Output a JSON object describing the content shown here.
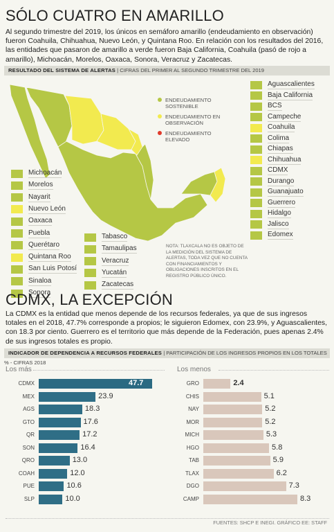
{
  "title": "SÓLO CUATRO EN AMARILLO",
  "intro": "Al segundo trimestre del 2019, los únicos en semáforo amarillo (endeudamiento en observación) fueron Coahuila, Chihuahua, Nuevo León, y Quintana Roo. En relación con los resultados del 2016, las entidades que pasaron de amarillo a verde fueron Baja California, Coahuila (pasó de rojo a amarillo), Michoacán, Morelos, Oaxaca, Sonora, Veracruz y Zacatecas.",
  "map_section": {
    "header_bold": "RESULTADO DEL SISTEMA DE ALERTAS",
    "header_rest": "| CIFRAS DEL PRIMER AL SEGUNDO TRIMESTRE DEL 2019",
    "legend": [
      {
        "label": "ENDEUDAMIENTO SOSTENIBLE",
        "color": "#b5c745"
      },
      {
        "label": "ENDEUDAMIENTO EN OBSERVACIÓN",
        "color": "#f2ea4f"
      },
      {
        "label": "ENDEUDAMIENTO ELEVADO",
        "color": "#e03a2b"
      }
    ],
    "note": "NOTA: TLAXCALA NO ES OBJETO DE LA MEDICIÓN DEL SISTEMA DE ALERTAS, TODA VEZ QUE NO CUENTA CON FINANCIAMIENTOS Y OBLIGACIONES INSCRITOS EN EL REGISTRO PÚBLICO ÚNICO.",
    "colors": {
      "green": "#b5c745",
      "yellow": "#f2ea4f",
      "red": "#e03a2b"
    },
    "left_states": [
      {
        "name": "Michoacán",
        "status": "green"
      },
      {
        "name": "Morelos",
        "status": "green"
      },
      {
        "name": "Nayarit",
        "status": "green"
      },
      {
        "name": "Nuevo León",
        "status": "yellow"
      },
      {
        "name": "Oaxaca",
        "status": "green"
      },
      {
        "name": "Puebla",
        "status": "green"
      },
      {
        "name": "Querétaro",
        "status": "green"
      },
      {
        "name": "Quintana Roo",
        "status": "yellow"
      },
      {
        "name": "San Luis Potosí",
        "status": "green"
      },
      {
        "name": "Sinaloa",
        "status": "green"
      },
      {
        "name": "Sonora",
        "status": "green"
      }
    ],
    "middle_states": [
      {
        "name": "Tabasco",
        "status": "green"
      },
      {
        "name": "Tamaulipas",
        "status": "green"
      },
      {
        "name": "Veracruz",
        "status": "green"
      },
      {
        "name": "Yucatán",
        "status": "green"
      },
      {
        "name": "Zacatecas",
        "status": "green"
      }
    ],
    "right_states": [
      {
        "name": "Aguascalientes",
        "status": "green"
      },
      {
        "name": "Baja California",
        "status": "green"
      },
      {
        "name": "BCS",
        "status": "green"
      },
      {
        "name": "Campeche",
        "status": "green"
      },
      {
        "name": "Coahuila",
        "status": "yellow"
      },
      {
        "name": "Colima",
        "status": "green"
      },
      {
        "name": "Chiapas",
        "status": "green"
      },
      {
        "name": "Chihuahua",
        "status": "yellow"
      },
      {
        "name": "CDMX",
        "status": "green"
      },
      {
        "name": "Durango",
        "status": "green"
      },
      {
        "name": "Guanajuato",
        "status": "green"
      },
      {
        "name": "Guerrero",
        "status": "green"
      },
      {
        "name": "Hidalgo",
        "status": "green"
      },
      {
        "name": "Jalisco",
        "status": "green"
      },
      {
        "name": "Edomex",
        "status": "green"
      }
    ]
  },
  "cdmx_title": "CDMX, LA EXCEPCIÓN",
  "cdmx_text": "La CDMX es la entidad que menos depende de los recursos federales, ya que de sus ingresos totales en el 2018, 47.7% corresponde a propios; le siguieron Edomex, con 23.9%, y Aguascalientes, con 18.3 por ciento. Guerrero es el territorio que más depende de la Federación, pues apenas 2.4% de sus ingresos totales es propio.",
  "chart_section": {
    "header_bold": "INDICADOR DE DEPENDENCIA A RECURSOS FEDERALES",
    "header_rest": "| PARTICIPACIÓN DE LOS INGRESOS PROPIOS EN LOS TOTALES % - CIFRAS 2018",
    "colors": {
      "top": "#2f6e86",
      "top_highlight": "#2b6a82",
      "bottom": "#d9c7bb"
    }
  },
  "chart_data": [
    {
      "type": "bar",
      "orientation": "horizontal",
      "title": "Los más",
      "categories": [
        "CDMX",
        "MEX",
        "AGS",
        "GTO",
        "QR",
        "SON",
        "QRO",
        "COAH",
        "PUE",
        "SLP"
      ],
      "values": [
        47.7,
        23.9,
        18.3,
        17.6,
        17.2,
        16.4,
        13.0,
        12.0,
        10.6,
        10.0
      ],
      "labels": [
        "47.7",
        "23.9",
        "18.3",
        "17.6",
        "17.2",
        "16.4",
        "13.0",
        "12.0",
        "10.6",
        "10.0"
      ],
      "xlim": [
        0,
        47.7
      ]
    },
    {
      "type": "bar",
      "orientation": "horizontal",
      "title": "Los menos",
      "categories": [
        "GRO",
        "CHIS",
        "NAY",
        "MOR",
        "MICH",
        "HGO",
        "TAB",
        "TLAX",
        "DGO",
        "CAMP"
      ],
      "values": [
        2.4,
        5.1,
        5.2,
        5.2,
        5.3,
        5.8,
        5.9,
        6.2,
        7.3,
        8.3
      ],
      "labels": [
        "2.4",
        "5.1",
        "5.2",
        "5.2",
        "5.3",
        "5.8",
        "5.9",
        "6.2",
        "7.3",
        "8.3"
      ],
      "xlim": [
        0,
        8.3
      ]
    }
  ],
  "source": "FUENTES: SHCP E INEGI. GRÁFICO EE: STAFF"
}
